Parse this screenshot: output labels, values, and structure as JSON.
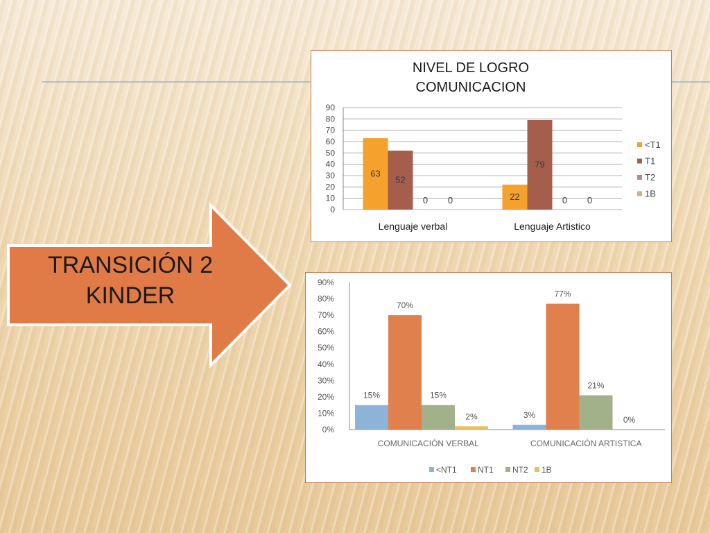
{
  "arrow": {
    "line1": "TRANSICIÓN 2",
    "line2": "KINDER",
    "color": "#e07b47"
  },
  "chart_data": [
    {
      "type": "bar",
      "title_lines": [
        "NIVEL DE LOGRO",
        "COMUNICACION"
      ],
      "categories": [
        "Lenguaje verbal",
        "Lenguaje Artistico"
      ],
      "series": [
        {
          "name": "<T1",
          "values": [
            63,
            22
          ],
          "color": "#f4a12e"
        },
        {
          "name": "T1",
          "values": [
            52,
            79
          ],
          "color": "#a55e4c"
        },
        {
          "name": "T2",
          "values": [
            0,
            0
          ],
          "color": "#a98aa0"
        },
        {
          "name": "1B",
          "values": [
            0,
            0
          ],
          "color": "#d9a98a"
        }
      ],
      "yticks": [
        "0",
        "10",
        "20",
        "30",
        "40",
        "50",
        "60",
        "70",
        "80",
        "90"
      ],
      "ylim": [
        0,
        90
      ],
      "grid": true,
      "legend": "right",
      "data_labels": true
    },
    {
      "type": "bar",
      "categories": [
        "COMUNICACIÓN VERBAL",
        "COMUNICACIÓN ARTISTICA"
      ],
      "series": [
        {
          "name": "<NT1",
          "values": [
            15,
            3
          ],
          "labels": [
            "15%",
            "3%"
          ],
          "color": "#8db3d9"
        },
        {
          "name": "NT1",
          "values": [
            70,
            77
          ],
          "labels": [
            "70%",
            "77%"
          ],
          "color": "#e0804d"
        },
        {
          "name": "NT2",
          "values": [
            15,
            21
          ],
          "labels": [
            "15%",
            "21%"
          ],
          "color": "#a2b18a"
        },
        {
          "name": "1B",
          "values": [
            2,
            0
          ],
          "labels": [
            "2%",
            "0%"
          ],
          "color": "#e6c15d"
        }
      ],
      "yticks": [
        "0%",
        "10%",
        "20%",
        "30%",
        "40%",
        "50%",
        "60%",
        "70%",
        "80%",
        "90%"
      ],
      "ylim": [
        0,
        90
      ],
      "grid": false,
      "legend": "bottom",
      "data_labels": true
    }
  ]
}
